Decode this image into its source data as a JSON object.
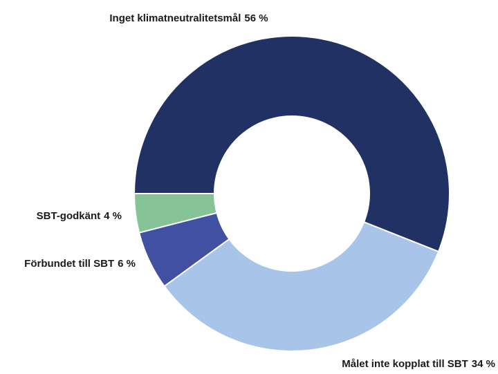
{
  "chart_data": {
    "type": "donut",
    "categories": [
      "Inget klimatneutralitetsmål",
      "Målet inte kopplat till SBT",
      "Förbundet till SBT",
      "SBT-godkänt"
    ],
    "values": [
      56,
      34,
      6,
      4
    ],
    "value_labels": [
      "56 %",
      "34 %",
      "6 %",
      "4 %"
    ],
    "colors": [
      "#213163",
      "#a8c4e8",
      "#4150a0",
      "#86c498"
    ]
  }
}
